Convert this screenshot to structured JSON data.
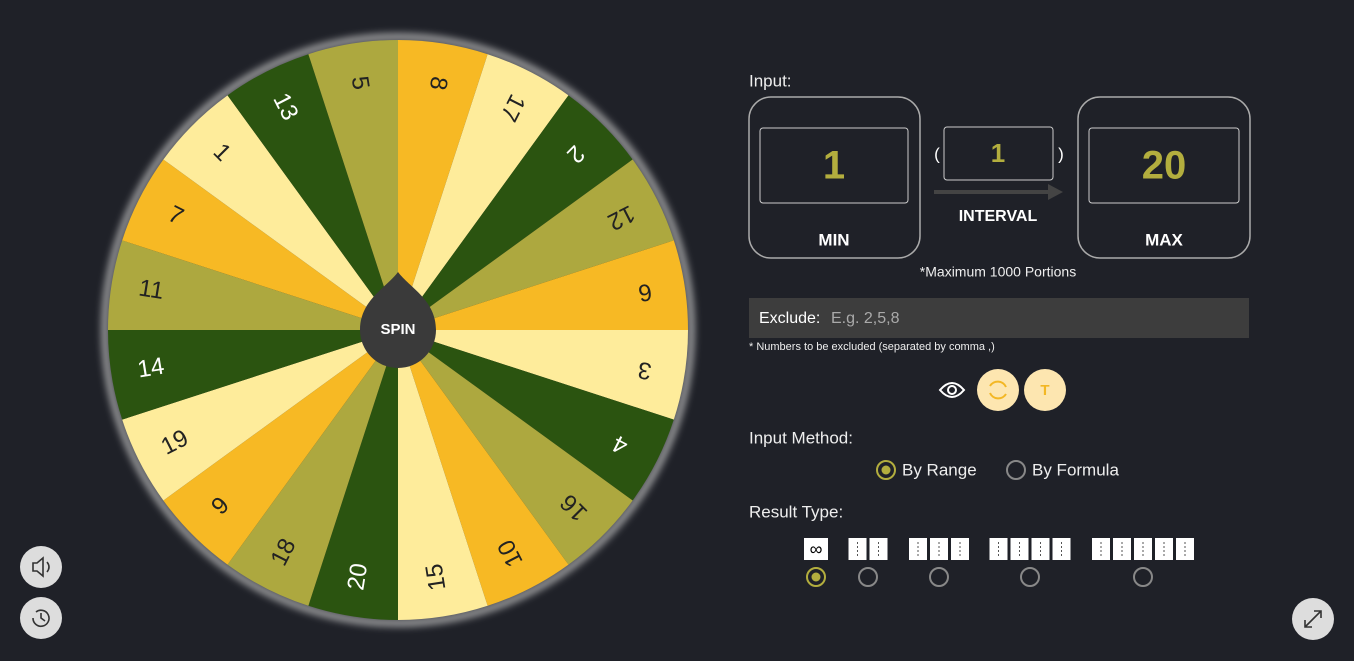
{
  "wheel": {
    "segments": [
      "8",
      "17",
      "2",
      "12",
      "6",
      "3",
      "4",
      "16",
      "10",
      "15",
      "20",
      "18",
      "9",
      "19",
      "14",
      "11",
      "7",
      "1",
      "13",
      "5"
    ],
    "colors": [
      "#f7b924",
      "#feec9b",
      "#2b5410",
      "#ada83f"
    ],
    "spin": "SPIN"
  },
  "input": {
    "label": "Input:",
    "min": {
      "value": "1",
      "label": "MIN"
    },
    "interval": {
      "value": "1",
      "label": "INTERVAL",
      "open": "(",
      "close": ")"
    },
    "max": {
      "value": "20",
      "label": "MAX"
    },
    "note": "*Maximum 1000 Portions"
  },
  "exclude": {
    "label": "Exclude:",
    "placeholder": "E.g. 2,5,8",
    "note": "* Numbers to be excluded (separated by comma ,)"
  },
  "toggle": {
    "letter": "T"
  },
  "input_method": {
    "label": "Input Method:",
    "options": [
      "By Range",
      "By Formula"
    ]
  },
  "result_type": {
    "label": "Result Type:",
    "infinity": "∞"
  }
}
